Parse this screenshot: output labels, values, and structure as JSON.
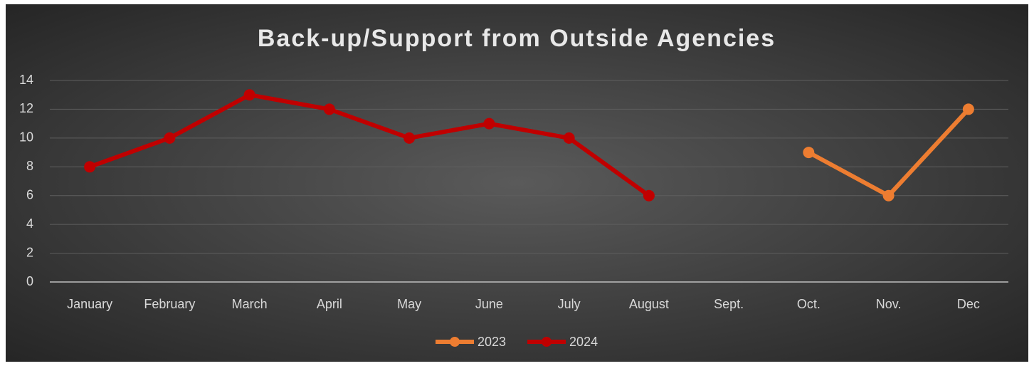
{
  "chart_data": {
    "type": "line",
    "title": "Back-up/Support from Outside Agencies",
    "categories": [
      "January",
      "February",
      "March",
      "April",
      "May",
      "June",
      "July",
      "August",
      "Sept.",
      "Oct.",
      "Nov.",
      "Dec"
    ],
    "series": [
      {
        "name": "2023",
        "color": "#ed7d31",
        "values": [
          null,
          null,
          null,
          null,
          null,
          null,
          null,
          null,
          null,
          9,
          6,
          12
        ]
      },
      {
        "name": "2024",
        "color": "#c00000",
        "values": [
          8,
          10,
          13,
          12,
          10,
          11,
          10,
          6,
          null,
          null,
          null,
          null
        ]
      }
    ],
    "ylim": [
      0,
      14
    ],
    "yticks": [
      0,
      2,
      4,
      6,
      8,
      10,
      12,
      14
    ],
    "grid": true,
    "legend": "bottom"
  }
}
